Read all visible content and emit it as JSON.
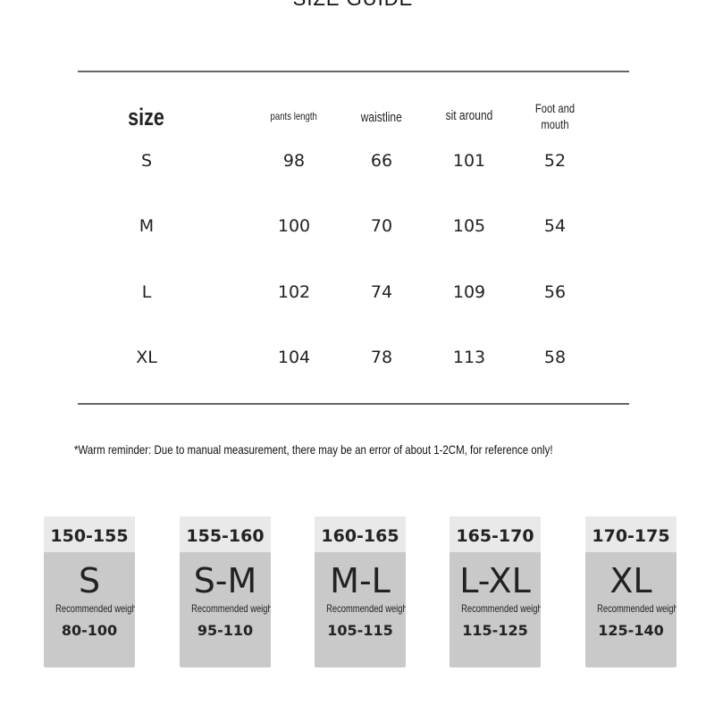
{
  "title": "SIZE GUIDE",
  "table": {
    "headers": [
      "size",
      "pants length",
      "waistline",
      "sit around",
      "Foot and mouth"
    ],
    "rows": [
      [
        "S",
        "98",
        "66",
        "101",
        "52"
      ],
      [
        "M",
        "100",
        "70",
        "105",
        "54"
      ],
      [
        "L",
        "102",
        "74",
        "109",
        "56"
      ],
      [
        "XL",
        "104",
        "78",
        "113",
        "58"
      ]
    ]
  },
  "reminder": "*Warm reminder: Due to manual measurement, there may be an error of about 1-2CM, for reference only!",
  "cards": [
    {
      "height": "150-155",
      "size": "S",
      "label": "Recommended weight",
      "weight": "80-100"
    },
    {
      "height": "155-160",
      "size": "S-M",
      "label": "Recommended weight",
      "weight": "95-110"
    },
    {
      "height": "160-165",
      "size": "M-L",
      "label": "Recommended weight",
      "weight": "105-115"
    },
    {
      "height": "165-170",
      "size": "L-XL",
      "label": "Recommended weight",
      "weight": "115-125"
    },
    {
      "height": "170-175",
      "size": "XL",
      "label": "Recommended weight",
      "weight": "125-140"
    }
  ]
}
